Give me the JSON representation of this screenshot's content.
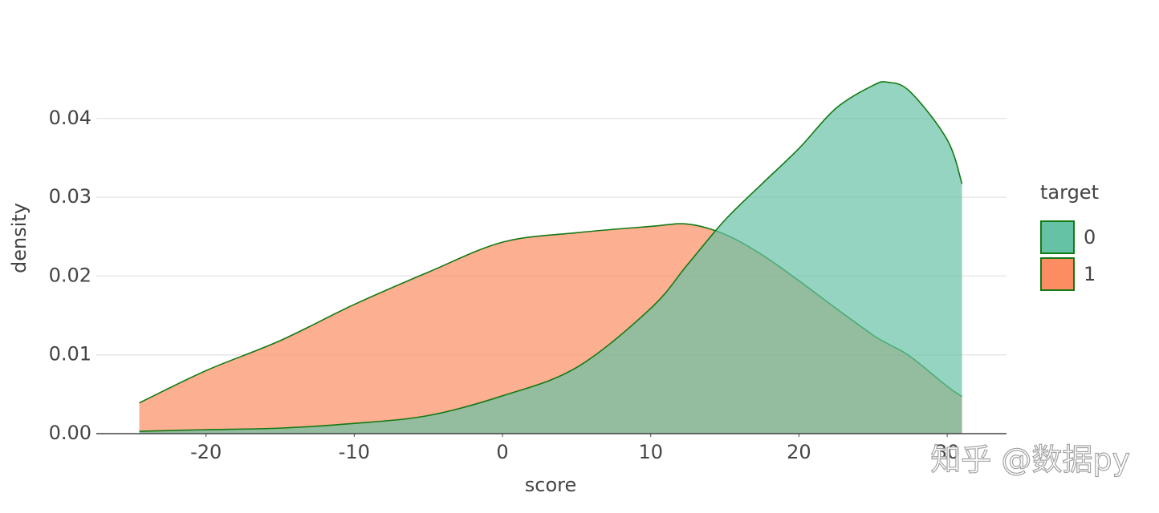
{
  "chart_data": {
    "type": "area",
    "x_label": "score",
    "y_label": "density",
    "legend_title": "target",
    "legend_position": "right",
    "watermark": "知乎 @数据py",
    "x": [
      -24.5,
      -20,
      -15,
      -10,
      -5,
      0,
      5,
      10,
      12.5,
      15,
      17.5,
      20,
      22.5,
      25,
      26,
      27.5,
      30,
      31
    ],
    "series": [
      {
        "name": "0",
        "color": "#66c2a5",
        "values": [
          0.0003,
          0.0005,
          0.0007,
          0.0013,
          0.0023,
          0.0048,
          0.0084,
          0.0159,
          0.0215,
          0.0271,
          0.0317,
          0.0362,
          0.0413,
          0.0442,
          0.0446,
          0.0434,
          0.0373,
          0.0317
        ]
      },
      {
        "name": "1",
        "color": "#fc8d62",
        "values": [
          0.0039,
          0.008,
          0.0118,
          0.0164,
          0.0205,
          0.0243,
          0.0255,
          0.0263,
          0.0266,
          0.0253,
          0.0227,
          0.0194,
          0.0159,
          0.0125,
          0.0114,
          0.0098,
          0.006,
          0.0047
        ]
      }
    ],
    "line_color": "#137a13",
    "xlim": [
      -27.4,
      34
    ],
    "xticks": [
      -20,
      -10,
      0,
      10,
      20,
      30
    ],
    "ylim": [
      0,
      0.047
    ],
    "yticks": [
      {
        "value": 0,
        "label": "0.00"
      },
      0.01,
      0.02,
      0.03,
      0.04
    ],
    "grid": true
  }
}
